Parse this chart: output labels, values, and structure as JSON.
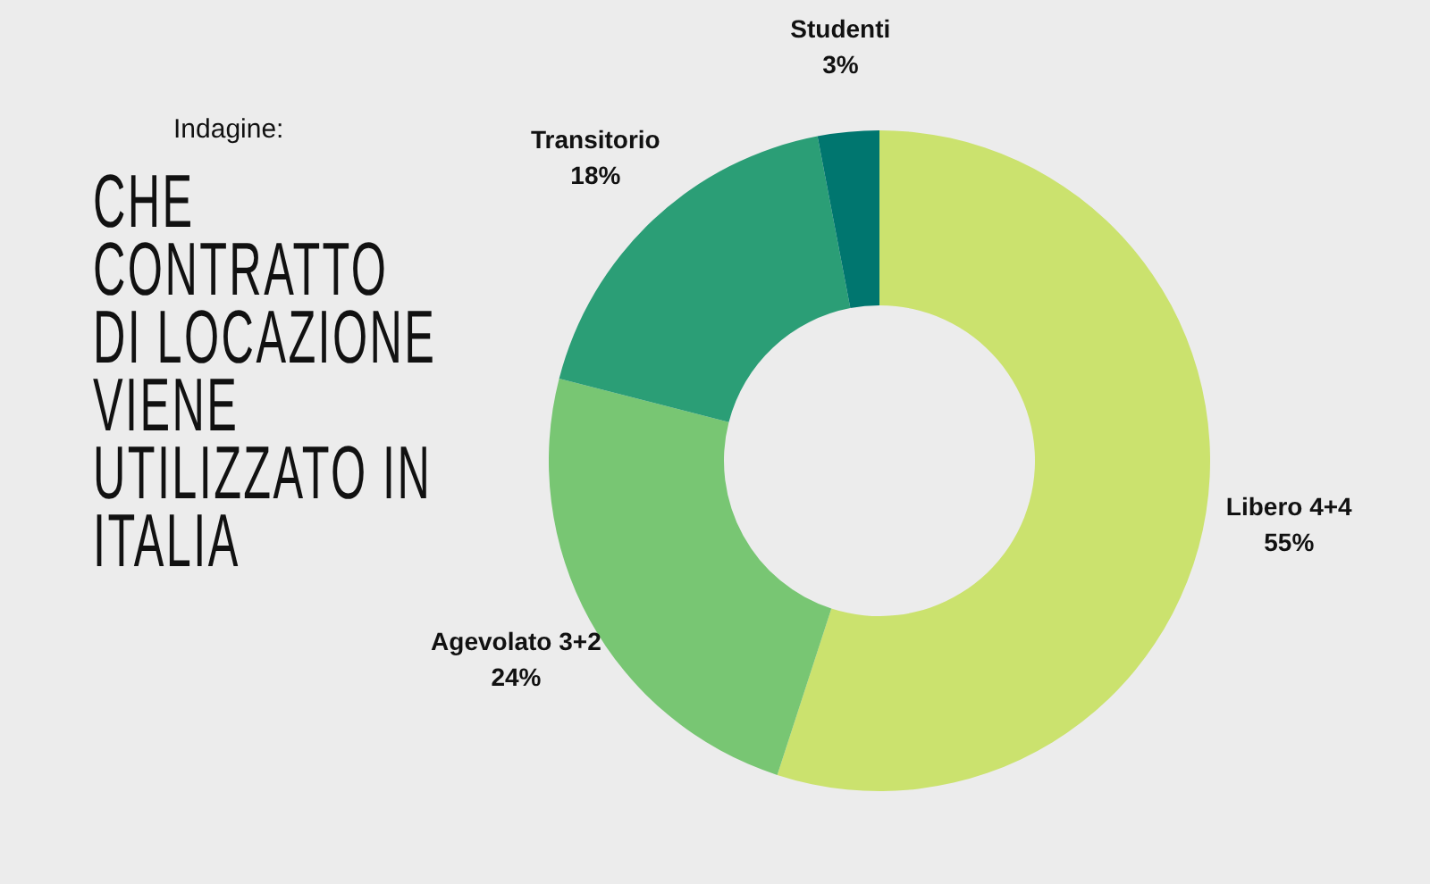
{
  "chart_data": {
    "type": "donut",
    "title": "CHE\nCONTRATTO\nDI LOCAZIONE\nVIENE\nUTILIZZATO IN\nITALIA",
    "subtitle": "Indagine:",
    "categories": [
      "Libero 4+4",
      "Agevolato 3+2",
      "Transitorio",
      "Studenti"
    ],
    "values": [
      55,
      24,
      18,
      3
    ],
    "colors": [
      "#cbe26e",
      "#78c673",
      "#2b9e76",
      "#00766f"
    ],
    "value_labels": [
      "55%",
      "24%",
      "18%",
      "3%"
    ]
  }
}
